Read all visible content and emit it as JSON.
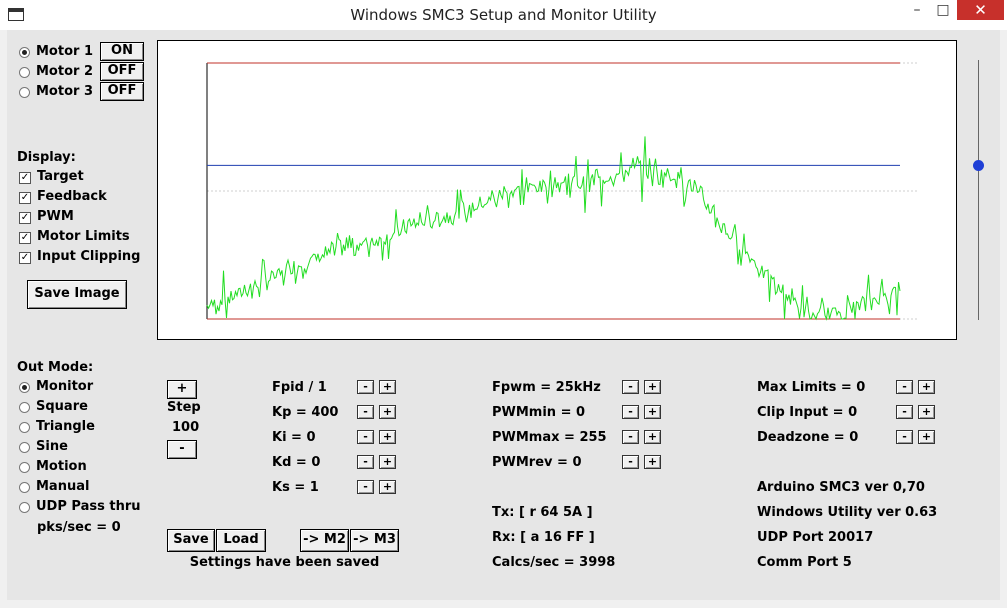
{
  "window": {
    "title": "Windows SMC3 Setup and Monitor Utility",
    "min_glyph": "–",
    "max_glyph": "□",
    "close_glyph": "✕"
  },
  "motors": [
    {
      "label": "Motor 1",
      "state": "ON",
      "selected": true
    },
    {
      "label": "Motor 2",
      "state": "OFF",
      "selected": false
    },
    {
      "label": "Motor 3",
      "state": "OFF",
      "selected": false
    }
  ],
  "display": {
    "heading": "Display:",
    "options": [
      {
        "label": "Target",
        "checked": true
      },
      {
        "label": "Feedback",
        "checked": true
      },
      {
        "label": "PWM",
        "checked": true
      },
      {
        "label": "Motor Limits",
        "checked": true
      },
      {
        "label": "Input Clipping",
        "checked": true
      }
    ],
    "save_image": "Save Image"
  },
  "out_mode": {
    "heading": "Out Mode:",
    "options": [
      {
        "label": "Monitor",
        "selected": true
      },
      {
        "label": "Square",
        "selected": false
      },
      {
        "label": "Triangle",
        "selected": false
      },
      {
        "label": "Sine",
        "selected": false
      },
      {
        "label": "Motion",
        "selected": false
      },
      {
        "label": "Manual",
        "selected": false
      },
      {
        "label": "UDP Pass thru",
        "selected": false
      }
    ],
    "pks_sec": "pks/sec = 0"
  },
  "step": {
    "plus": "+",
    "label": "Step",
    "value": "100",
    "minus": "-"
  },
  "pid_params": [
    "Fpid / 1",
    "Kp = 400",
    "Ki = 0",
    "Kd = 0",
    "Ks = 1"
  ],
  "pwm_params": [
    "Fpwm = 25kHz",
    "PWMmin = 0",
    "PWMmax = 255",
    "PWMrev = 0"
  ],
  "limit_params": [
    "Max Limits = 0",
    "Clip Input = 0",
    "Deadzone = 0"
  ],
  "adjust": {
    "minus": "-",
    "plus": "+"
  },
  "comms": {
    "tx": "Tx: [ r 64 5A ]",
    "rx": "Rx: [ a 16 FF ]",
    "calcs": "Calcs/sec = 3998"
  },
  "info": {
    "arduino": "Arduino SMC3 ver 0,70",
    "utility": "Windows Utility ver 0.63",
    "udp_port": "UDP Port 20017",
    "comm_port": "Comm Port 5"
  },
  "buttons": {
    "save": "Save",
    "load": "Load",
    "to_m2": "-> M2",
    "to_m3": "-> M3"
  },
  "status": "Settings have been saved",
  "colors": {
    "limits": "#c0302a",
    "target": "#1f3fb0",
    "pwm": "#22dd22",
    "slider": "#1f3fd6"
  },
  "chart_data": {
    "type": "line",
    "title": "",
    "xlabel": "",
    "ylabel": "",
    "series": [
      {
        "values": [
          0.0,
          0.0
        ]
      },
      {
        "values": [
          1.0,
          1.0
        ]
      },
      {
        "values": [
          0.6,
          0.6
        ]
      },
      {
        "values": [
          0.05,
          0.12,
          0.2,
          0.27,
          0.31,
          0.38,
          0.42,
          0.5,
          0.53,
          0.54,
          0.59,
          0.55,
          0.35,
          0.15,
          0.0,
          0.05,
          0.12
        ]
      }
    ]
  }
}
